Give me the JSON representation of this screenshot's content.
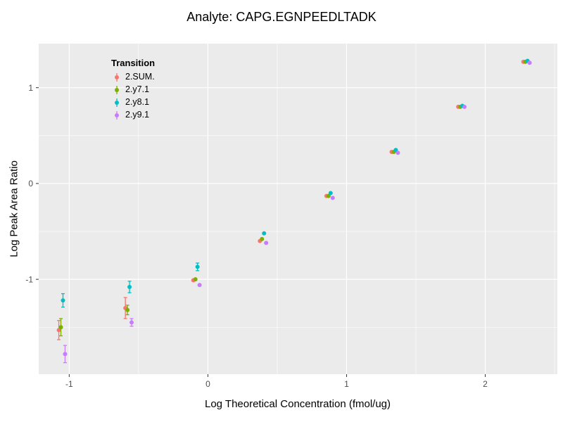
{
  "chart_data": {
    "type": "scatter",
    "title": "Analyte: CAPG.EGNPEEDLTADK",
    "xlabel": "Log Theoretical Concentration (fmol/ug)",
    "ylabel": "Log Peak Area Ratio",
    "legend_title": "Transition",
    "xlim": [
      -1.22,
      2.52
    ],
    "ylim": [
      -1.99,
      1.46
    ],
    "x_ticks": [
      -1,
      0,
      1,
      2
    ],
    "y_ticks": [
      -1,
      0,
      1
    ],
    "x_minor_ticks": [
      -0.5,
      0.5,
      1.5,
      2.5
    ],
    "y_minor_ticks": [
      -1.5,
      -0.5,
      0.5
    ],
    "panel_bg": "#EBEBEB",
    "grid_color": "#FFFFFF",
    "tick_label_color": "#4D4D4D",
    "tick_mark_color": "#333333",
    "x": [
      -1.05,
      -0.57,
      -0.08,
      0.4,
      0.88,
      1.35,
      1.83,
      2.3
    ],
    "series": [
      {
        "name": "2.SUM.",
        "color": "#F8766D",
        "offset": -0.025,
        "y": [
          -1.53,
          -1.3,
          -1.01,
          -0.6,
          -0.13,
          0.33,
          0.8,
          1.27
        ],
        "err": [
          0.1,
          0.11,
          0.02,
          0.01,
          0.01,
          0.01,
          0.0,
          0.0
        ]
      },
      {
        "name": "2.y7.1",
        "color": "#7CAE00",
        "offset": -0.01,
        "y": [
          -1.5,
          -1.32,
          -1.0,
          -0.58,
          -0.13,
          0.33,
          0.8,
          1.27
        ],
        "err": [
          0.09,
          0.05,
          0.02,
          0.01,
          0.0,
          0.0,
          0.0,
          0.0
        ]
      },
      {
        "name": "2.y8.1",
        "color": "#00BFC4",
        "offset": 0.005,
        "y": [
          -1.22,
          -1.08,
          -0.87,
          -0.52,
          -0.1,
          0.35,
          0.81,
          1.28
        ],
        "err": [
          0.07,
          0.06,
          0.04,
          0.01,
          0.01,
          0.0,
          0.0,
          0.0
        ]
      },
      {
        "name": "2.y9.1",
        "color": "#C77CFF",
        "offset": 0.02,
        "y": [
          -1.78,
          -1.45,
          -1.06,
          -0.62,
          -0.15,
          0.32,
          0.8,
          1.26
        ],
        "err": [
          0.09,
          0.04,
          0.02,
          0.01,
          0.0,
          0.0,
          0.0,
          0.0
        ]
      }
    ]
  }
}
